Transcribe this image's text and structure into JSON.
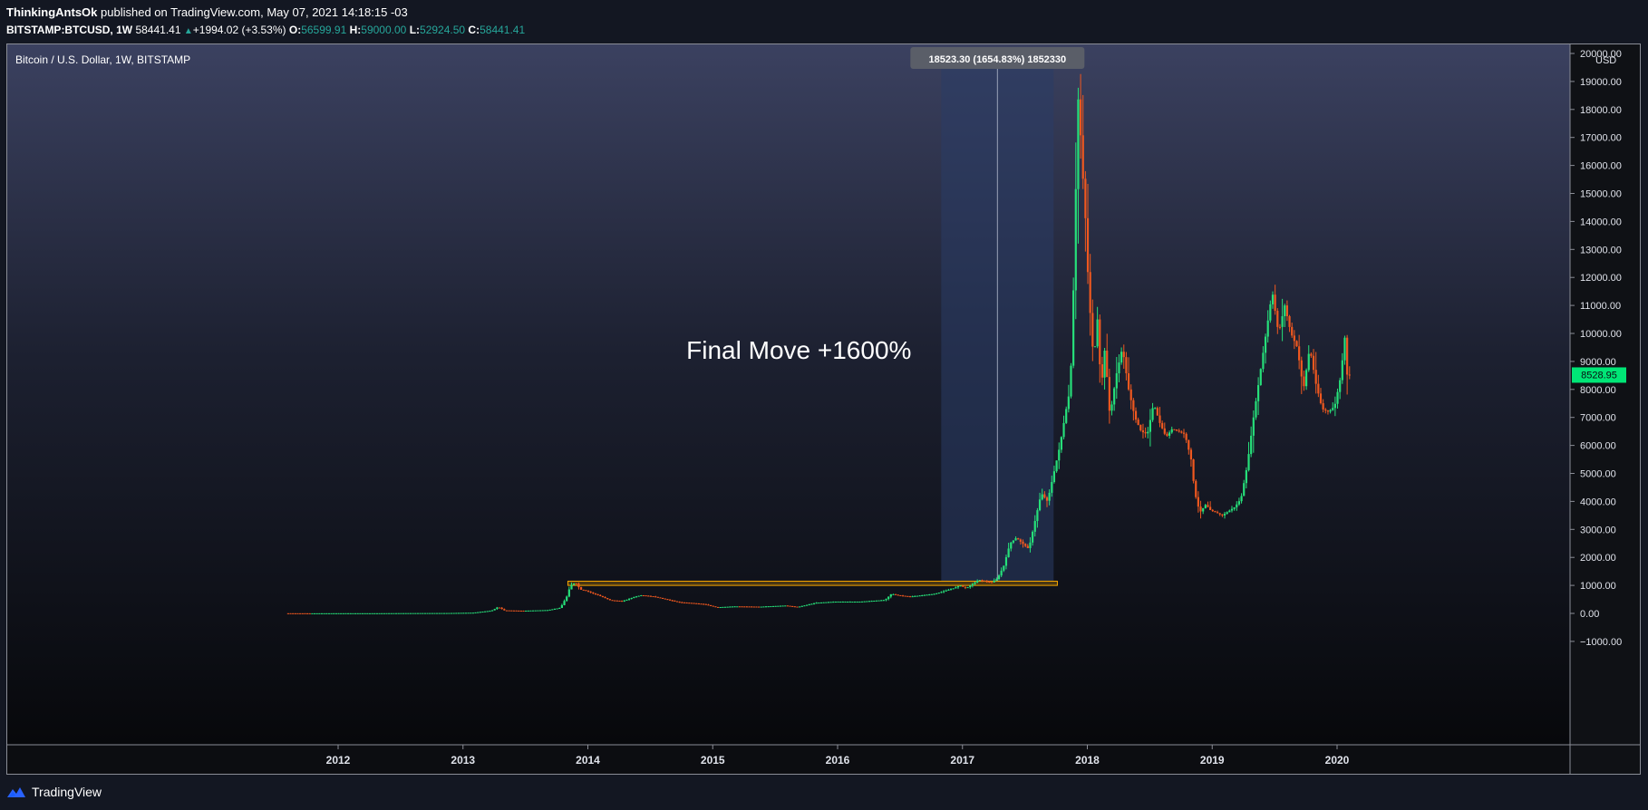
{
  "header": {
    "author": "ThinkingAntsOk",
    "published_text": "published on TradingView.com, May 07, 2021 14:18:15 -03",
    "symbol": "BITSTAMP:BTCUSD, 1W",
    "last": "58441.41",
    "change": "+1994.02 (+3.53%)",
    "o_label": "O:",
    "o_value": "56599.91",
    "h_label": "H:",
    "h_value": "59000.00",
    "l_label": "L:",
    "l_value": "52924.50",
    "c_label": "C:",
    "c_value": "58441.41"
  },
  "footer": {
    "brand": "TradingView",
    "logo_icon": "tradingview-logo-icon"
  },
  "colors": {
    "up": "#26e07a",
    "down": "#f0581f",
    "zone": "#f7a600",
    "measure_fill": "#2a3c66",
    "price_badge": "#00e676"
  },
  "chart_data": {
    "type": "candlestick",
    "title": "Bitcoin / U.S. Dollar, 1W, BITSTAMP",
    "ylabel": "USD",
    "ylim": [
      -1000,
      20000
    ],
    "y_ticks": [
      -1000,
      0,
      1000,
      2000,
      3000,
      4000,
      5000,
      6000,
      7000,
      8000,
      9000,
      10000,
      11000,
      12000,
      13000,
      14000,
      15000,
      16000,
      17000,
      18000,
      19000,
      20000
    ],
    "y_tick_labels": [
      "−1000.00",
      "0.00",
      "1000.00",
      "2000.00",
      "3000.00",
      "4000.00",
      "5000.00",
      "6000.00",
      "7000.00",
      "8000.00",
      "9000.00",
      "10000.00",
      "11000.00",
      "12000.00",
      "13000.00",
      "14000.00",
      "15000.00",
      "16000.00",
      "17000.00",
      "18000.00",
      "19000.00",
      "20000.00"
    ],
    "x_ticks": [
      2012,
      2013,
      2014,
      2015,
      2016,
      2017,
      2018,
      2019,
      2020
    ],
    "xlim": [
      2011.31,
      2020.1
    ],
    "last_price": "8528.95",
    "annotation": "Final Move +1600%",
    "measure": {
      "x_start": 2016.83,
      "x_end": 2017.73,
      "y_low": 1150,
      "y_high": 19650,
      "label": "18523.30 (1654.83%) 1852330"
    },
    "zone": {
      "x_start": 2013.84,
      "x_end": 2017.76,
      "y_low": 1000,
      "y_high": 1150
    },
    "series": [
      {
        "name": "",
        "points": [
          [
            2011.6,
            5
          ],
          [
            2011.8,
            3
          ],
          [
            2012.0,
            5
          ],
          [
            2012.3,
            5
          ],
          [
            2012.6,
            10
          ],
          [
            2012.9,
            13
          ],
          [
            2013.1,
            25
          ],
          [
            2013.25,
            100
          ],
          [
            2013.3,
            230
          ],
          [
            2013.35,
            110
          ],
          [
            2013.5,
            95
          ],
          [
            2013.7,
            120
          ],
          [
            2013.8,
            200
          ],
          [
            2013.85,
            600
          ],
          [
            2013.88,
            1000
          ],
          [
            2013.92,
            1100
          ],
          [
            2013.96,
            850
          ],
          [
            2014.0,
            820
          ],
          [
            2014.1,
            650
          ],
          [
            2014.2,
            470
          ],
          [
            2014.3,
            440
          ],
          [
            2014.4,
            600
          ],
          [
            2014.45,
            650
          ],
          [
            2014.55,
            600
          ],
          [
            2014.65,
            500
          ],
          [
            2014.75,
            400
          ],
          [
            2014.85,
            370
          ],
          [
            2014.95,
            330
          ],
          [
            2015.05,
            220
          ],
          [
            2015.2,
            250
          ],
          [
            2015.4,
            240
          ],
          [
            2015.6,
            280
          ],
          [
            2015.7,
            230
          ],
          [
            2015.85,
            380
          ],
          [
            2016.0,
            420
          ],
          [
            2016.2,
            420
          ],
          [
            2016.4,
            480
          ],
          [
            2016.45,
            700
          ],
          [
            2016.5,
            650
          ],
          [
            2016.6,
            600
          ],
          [
            2016.8,
            700
          ],
          [
            2016.95,
            900
          ],
          [
            2017.0,
            1000
          ],
          [
            2017.05,
            900
          ],
          [
            2017.15,
            1200
          ],
          [
            2017.25,
            1100
          ],
          [
            2017.3,
            1250
          ],
          [
            2017.35,
            1700
          ],
          [
            2017.4,
            2500
          ],
          [
            2017.45,
            2700
          ],
          [
            2017.5,
            2500
          ],
          [
            2017.55,
            2300
          ],
          [
            2017.6,
            3300
          ],
          [
            2017.65,
            4300
          ],
          [
            2017.7,
            4000
          ],
          [
            2017.75,
            5000
          ],
          [
            2017.8,
            6000
          ],
          [
            2017.85,
            7300
          ],
          [
            2017.88,
            8000
          ],
          [
            2017.9,
            10000
          ],
          [
            2017.92,
            14000
          ],
          [
            2017.95,
            19000
          ],
          [
            2017.97,
            16500
          ],
          [
            2018.0,
            14500
          ],
          [
            2018.03,
            11500
          ],
          [
            2018.07,
            9000
          ],
          [
            2018.1,
            10500
          ],
          [
            2018.13,
            8000
          ],
          [
            2018.16,
            9500
          ],
          [
            2018.2,
            7000
          ],
          [
            2018.25,
            8500
          ],
          [
            2018.3,
            9500
          ],
          [
            2018.35,
            8000
          ],
          [
            2018.4,
            7000
          ],
          [
            2018.45,
            6500
          ],
          [
            2018.5,
            6400
          ],
          [
            2018.55,
            7500
          ],
          [
            2018.6,
            6800
          ],
          [
            2018.65,
            6300
          ],
          [
            2018.7,
            6600
          ],
          [
            2018.8,
            6400
          ],
          [
            2018.85,
            5500
          ],
          [
            2018.88,
            4300
          ],
          [
            2018.92,
            3600
          ],
          [
            2018.97,
            3900
          ],
          [
            2019.0,
            3700
          ],
          [
            2019.1,
            3500
          ],
          [
            2019.2,
            3800
          ],
          [
            2019.25,
            4100
          ],
          [
            2019.3,
            5300
          ],
          [
            2019.35,
            7000
          ],
          [
            2019.4,
            8500
          ],
          [
            2019.45,
            10000
          ],
          [
            2019.5,
            11500
          ],
          [
            2019.55,
            10000
          ],
          [
            2019.6,
            11000
          ],
          [
            2019.65,
            10000
          ],
          [
            2019.7,
            9500
          ],
          [
            2019.75,
            8000
          ],
          [
            2019.8,
            9500
          ],
          [
            2019.85,
            8200
          ],
          [
            2019.9,
            7300
          ],
          [
            2019.95,
            7200
          ],
          [
            2020.0,
            7400
          ],
          [
            2020.05,
            8500
          ],
          [
            2020.08,
            9900
          ],
          [
            2020.1,
            8529
          ]
        ]
      }
    ]
  }
}
